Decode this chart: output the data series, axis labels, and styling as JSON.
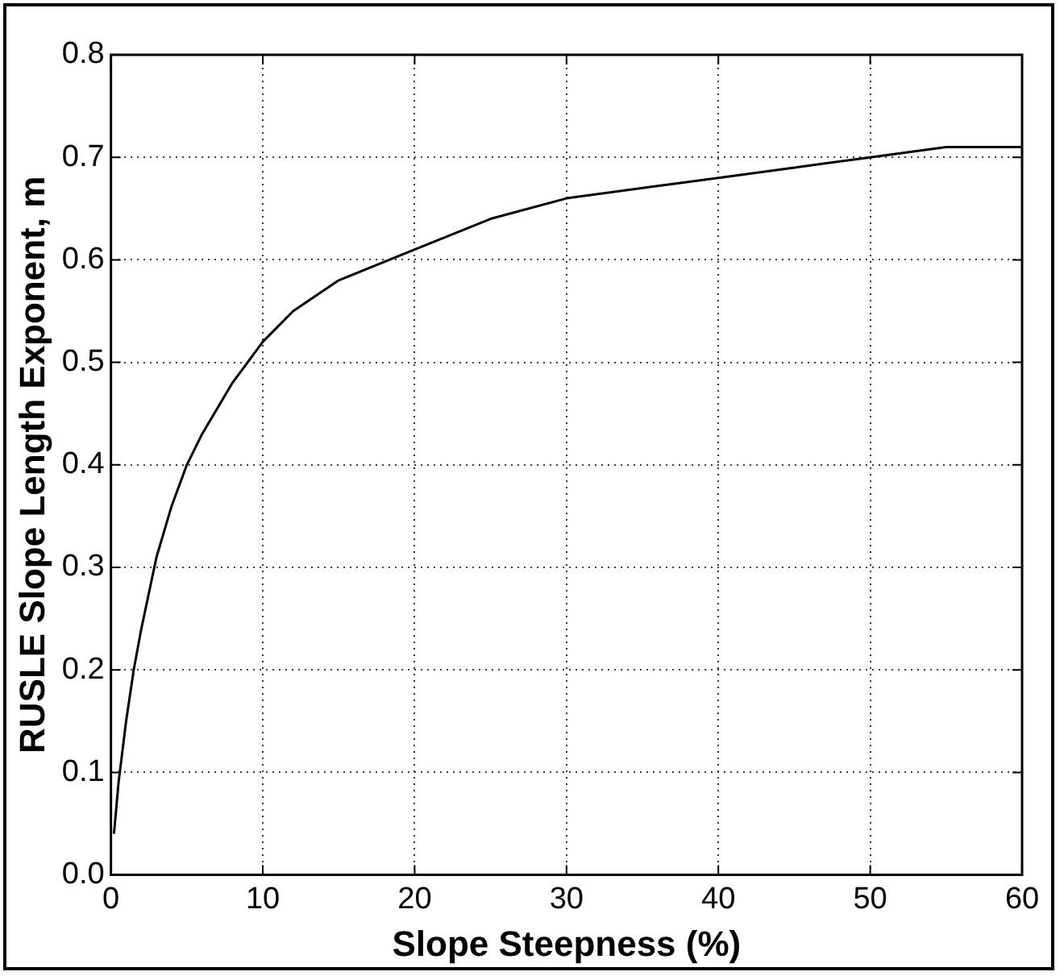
{
  "chart_data": {
    "type": "line",
    "xlabel": "Slope Steepness (%)",
    "ylabel": "RUSLE Slope Length Exponent, m",
    "xlim": [
      0,
      60
    ],
    "xticks": [
      0,
      10,
      20,
      30,
      40,
      50,
      60
    ],
    "ylim": [
      0,
      0.8
    ],
    "yticks": [
      {
        "value": 0,
        "label": "0.0"
      },
      0.1,
      0.2,
      0.3,
      0.4,
      0.5,
      0.6,
      0.7,
      0.8
    ],
    "grid": true,
    "line_style": "solid",
    "marker": "none",
    "series": [
      {
        "color": "#000000",
        "x": [
          0.2,
          0.5,
          1,
          1.5,
          2,
          3,
          4,
          5,
          6,
          8,
          10,
          12,
          15,
          20,
          25,
          30,
          35,
          40,
          45,
          50,
          55,
          60
        ],
        "values": [
          0.04,
          0.09,
          0.15,
          0.2,
          0.24,
          0.31,
          0.36,
          0.4,
          0.43,
          0.48,
          0.52,
          0.55,
          0.58,
          0.61,
          0.64,
          0.66,
          0.67,
          0.68,
          0.69,
          0.7,
          0.71,
          0.71
        ]
      }
    ]
  }
}
